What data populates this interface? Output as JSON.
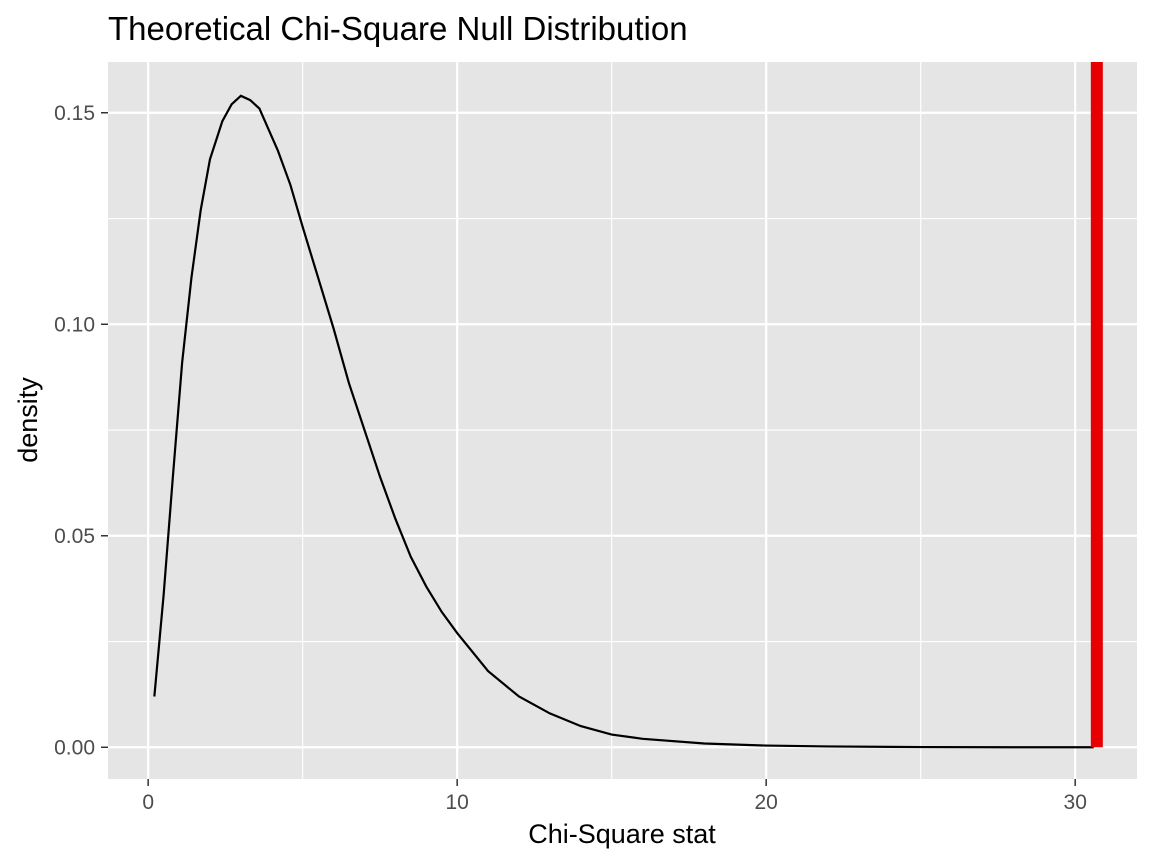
{
  "chart_data": {
    "type": "line",
    "title": "Theoretical Chi-Square Null Distribution",
    "xlabel": "Chi-Square stat",
    "ylabel": "density",
    "xlim": [
      -1.3,
      32.0
    ],
    "ylim": [
      -0.0075,
      0.162
    ],
    "x_ticks": [
      0,
      10,
      20,
      30
    ],
    "x_tick_labels": [
      "0",
      "10",
      "20",
      "30"
    ],
    "x_minor_ticks": [
      5,
      15,
      25
    ],
    "y_ticks": [
      0.0,
      0.05,
      0.1,
      0.15
    ],
    "y_tick_labels": [
      "0.00",
      "0.05",
      "0.10",
      "0.15"
    ],
    "y_minor_ticks": [
      0.025,
      0.075,
      0.125
    ],
    "grid": true,
    "legend": "none",
    "colors": {
      "panel_background": "#e5e5e5",
      "grid": "#ffffff",
      "curve": "#000000",
      "observed_line": "#e80000",
      "tick_label": "#4d4d4d"
    },
    "series": [
      {
        "values": [
          {
            "x": 0.2,
            "y": 0.012
          },
          {
            "x": 0.5,
            "y": 0.036
          },
          {
            "x": 0.8,
            "y": 0.064
          },
          {
            "x": 1.1,
            "y": 0.091
          },
          {
            "x": 1.4,
            "y": 0.111
          },
          {
            "x": 1.7,
            "y": 0.127
          },
          {
            "x": 2.0,
            "y": 0.139
          },
          {
            "x": 2.4,
            "y": 0.148
          },
          {
            "x": 2.7,
            "y": 0.152
          },
          {
            "x": 3.0,
            "y": 0.154
          },
          {
            "x": 3.3,
            "y": 0.153
          },
          {
            "x": 3.6,
            "y": 0.151
          },
          {
            "x": 3.9,
            "y": 0.146
          },
          {
            "x": 4.2,
            "y": 0.141
          },
          {
            "x": 4.6,
            "y": 0.133
          },
          {
            "x": 5.0,
            "y": 0.123
          },
          {
            "x": 5.5,
            "y": 0.111
          },
          {
            "x": 6.0,
            "y": 0.099
          },
          {
            "x": 6.5,
            "y": 0.086
          },
          {
            "x": 7.0,
            "y": 0.075
          },
          {
            "x": 7.5,
            "y": 0.064
          },
          {
            "x": 8.0,
            "y": 0.054
          },
          {
            "x": 8.5,
            "y": 0.045
          },
          {
            "x": 9.0,
            "y": 0.038
          },
          {
            "x": 9.5,
            "y": 0.032
          },
          {
            "x": 10.0,
            "y": 0.027
          },
          {
            "x": 11.0,
            "y": 0.018
          },
          {
            "x": 12.0,
            "y": 0.012
          },
          {
            "x": 13.0,
            "y": 0.008
          },
          {
            "x": 14.0,
            "y": 0.005
          },
          {
            "x": 15.0,
            "y": 0.003
          },
          {
            "x": 16.0,
            "y": 0.002
          },
          {
            "x": 18.0,
            "y": 0.0009
          },
          {
            "x": 20.0,
            "y": 0.0004
          },
          {
            "x": 22.0,
            "y": 0.0002
          },
          {
            "x": 25.0,
            "y": 5e-05
          },
          {
            "x": 28.0,
            "y": 1e-05
          },
          {
            "x": 30.6,
            "y": 0.0
          }
        ]
      }
    ],
    "vline": {
      "x": 30.7,
      "color": "#e80000"
    }
  }
}
